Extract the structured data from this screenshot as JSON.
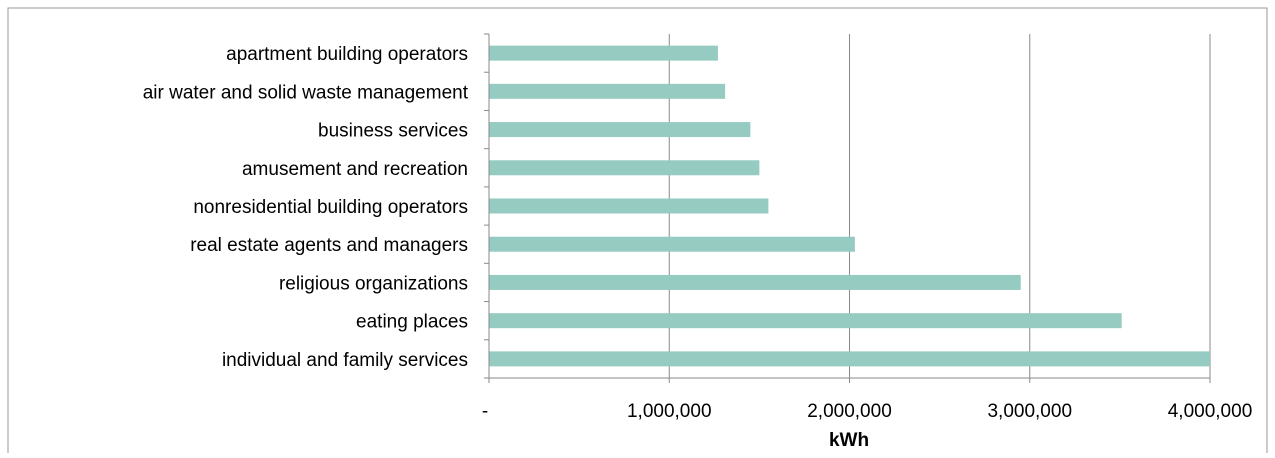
{
  "chart_data": {
    "type": "bar",
    "orientation": "horizontal",
    "categories": [
      "apartment building operators",
      "air water and solid waste management",
      "business services",
      "amusement and recreation",
      "nonresidential building operators",
      "real estate agents and managers",
      "religious organizations",
      "eating places",
      "individual and family services"
    ],
    "values": [
      1270000,
      1310000,
      1450000,
      1500000,
      1550000,
      2030000,
      2950000,
      3510000,
      4000000
    ],
    "xlabel": "kWh",
    "ylabel": "",
    "xlim": [
      0,
      4000000
    ],
    "x_ticks": [
      {
        "value": 0,
        "label": "-"
      },
      {
        "value": 1000000,
        "label": "1,000,000"
      },
      {
        "value": 2000000,
        "label": "2,000,000"
      },
      {
        "value": 3000000,
        "label": "3,000,000"
      },
      {
        "value": 4000000,
        "label": "4,000,000"
      }
    ],
    "grid": "vertical major gridlines",
    "legend": "none",
    "colors": {
      "bar": "#96cbc1",
      "grid": "#8a8a8a",
      "frame": "#9a9a9a",
      "text": "#000000"
    }
  }
}
